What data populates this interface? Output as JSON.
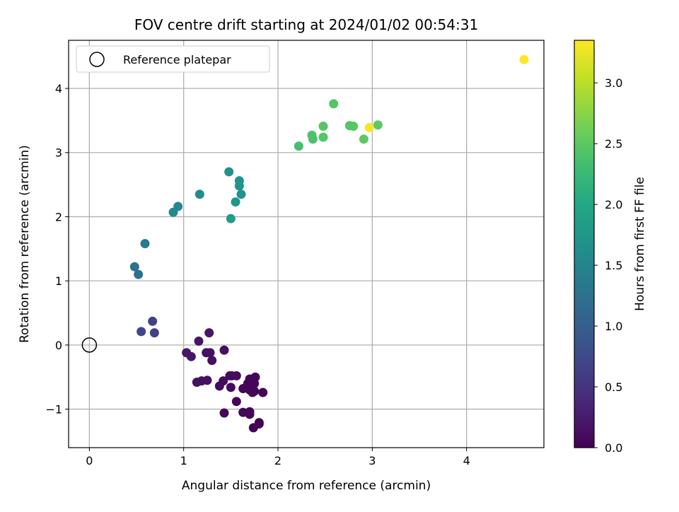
{
  "chart_data": {
    "type": "scatter",
    "title": "FOV centre drift starting at 2024/01/02 00:54:31",
    "xlabel": "Angular distance from reference (arcmin)",
    "ylabel": "Rotation from reference (arcmin)",
    "xlim": [
      -0.22,
      4.82
    ],
    "ylim": [
      -1.6,
      4.75
    ],
    "xticks": [
      0,
      1,
      2,
      3,
      4
    ],
    "yticks": [
      -1,
      0,
      1,
      2,
      3,
      4
    ],
    "xtick_labels": [
      "0",
      "1",
      "2",
      "3",
      "4"
    ],
    "ytick_labels": [
      "−1",
      "0",
      "1",
      "2",
      "3",
      "4"
    ],
    "grid": true,
    "legend": {
      "position": "top-left",
      "entries": [
        "Reference platepar"
      ]
    },
    "reference_point": {
      "x": 0,
      "y": 0
    },
    "colorbar": {
      "label": "Hours from first FF file",
      "range": [
        0,
        3.35
      ],
      "ticks": [
        0.0,
        0.5,
        1.0,
        1.5,
        2.0,
        2.5,
        3.0
      ],
      "tick_labels": [
        "0.0",
        "0.5",
        "1.0",
        "1.5",
        "2.0",
        "2.5",
        "3.0"
      ],
      "colormap": "viridis"
    },
    "points": [
      {
        "x": 1.27,
        "y": 0.19,
        "c": 0.2
      },
      {
        "x": 1.16,
        "y": 0.06,
        "c": 0.2
      },
      {
        "x": 1.43,
        "y": -0.08,
        "c": 0.15
      },
      {
        "x": 1.03,
        "y": -0.12,
        "c": 0.2
      },
      {
        "x": 1.08,
        "y": -0.18,
        "c": 0.2
      },
      {
        "x": 1.24,
        "y": -0.12,
        "c": 0.15
      },
      {
        "x": 1.28,
        "y": -0.12,
        "c": 0.15
      },
      {
        "x": 1.3,
        "y": -0.24,
        "c": 0.15
      },
      {
        "x": 1.14,
        "y": -0.58,
        "c": 0.15
      },
      {
        "x": 1.19,
        "y": -0.56,
        "c": 0.15
      },
      {
        "x": 1.25,
        "y": -0.55,
        "c": 0.15
      },
      {
        "x": 1.38,
        "y": -0.64,
        "c": 0.1
      },
      {
        "x": 1.42,
        "y": -0.56,
        "c": 0.1
      },
      {
        "x": 1.49,
        "y": -0.48,
        "c": 0.1
      },
      {
        "x": 1.51,
        "y": -0.48,
        "c": 0.1
      },
      {
        "x": 1.56,
        "y": -0.48,
        "c": 0.1
      },
      {
        "x": 1.5,
        "y": -0.66,
        "c": 0.1
      },
      {
        "x": 1.63,
        "y": -0.68,
        "c": 0.05
      },
      {
        "x": 1.68,
        "y": -0.6,
        "c": 0.05
      },
      {
        "x": 1.7,
        "y": -0.53,
        "c": 0.05
      },
      {
        "x": 1.72,
        "y": -0.58,
        "c": 0.05
      },
      {
        "x": 1.76,
        "y": -0.5,
        "c": 0.05
      },
      {
        "x": 1.75,
        "y": -0.6,
        "c": 0.05
      },
      {
        "x": 1.7,
        "y": -0.7,
        "c": 0.05
      },
      {
        "x": 1.73,
        "y": -0.74,
        "c": 0.05
      },
      {
        "x": 1.75,
        "y": -0.72,
        "c": 0.05
      },
      {
        "x": 1.84,
        "y": -0.74,
        "c": 0.05
      },
      {
        "x": 1.56,
        "y": -0.88,
        "c": 0.05
      },
      {
        "x": 1.43,
        "y": -1.06,
        "c": 0.05
      },
      {
        "x": 1.63,
        "y": -1.05,
        "c": 0.05
      },
      {
        "x": 1.7,
        "y": -1.04,
        "c": 0.05
      },
      {
        "x": 1.7,
        "y": -1.08,
        "c": 0.05
      },
      {
        "x": 1.8,
        "y": -1.21,
        "c": 0.02
      },
      {
        "x": 1.8,
        "y": -1.23,
        "c": 0.02
      },
      {
        "x": 1.74,
        "y": -1.29,
        "c": 0.02
      },
      {
        "x": 0.55,
        "y": 0.21,
        "c": 0.7
      },
      {
        "x": 0.67,
        "y": 0.37,
        "c": 0.65
      },
      {
        "x": 0.69,
        "y": 0.19,
        "c": 0.65
      },
      {
        "x": 0.48,
        "y": 1.22,
        "c": 1.25
      },
      {
        "x": 0.52,
        "y": 1.1,
        "c": 1.25
      },
      {
        "x": 0.59,
        "y": 1.58,
        "c": 1.35
      },
      {
        "x": 0.89,
        "y": 2.07,
        "c": 1.55
      },
      {
        "x": 0.94,
        "y": 2.16,
        "c": 1.55
      },
      {
        "x": 1.17,
        "y": 2.35,
        "c": 1.6
      },
      {
        "x": 1.48,
        "y": 2.7,
        "c": 1.7
      },
      {
        "x": 1.59,
        "y": 2.56,
        "c": 1.7
      },
      {
        "x": 1.59,
        "y": 2.48,
        "c": 1.7
      },
      {
        "x": 1.61,
        "y": 2.35,
        "c": 1.7
      },
      {
        "x": 1.55,
        "y": 2.23,
        "c": 1.75
      },
      {
        "x": 1.5,
        "y": 1.97,
        "c": 1.8
      },
      {
        "x": 2.22,
        "y": 3.1,
        "c": 2.35
      },
      {
        "x": 2.36,
        "y": 3.27,
        "c": 2.4
      },
      {
        "x": 2.37,
        "y": 3.21,
        "c": 2.4
      },
      {
        "x": 2.48,
        "y": 3.41,
        "c": 2.45
      },
      {
        "x": 2.48,
        "y": 3.24,
        "c": 2.45
      },
      {
        "x": 2.59,
        "y": 3.76,
        "c": 2.45
      },
      {
        "x": 2.76,
        "y": 3.42,
        "c": 2.45
      },
      {
        "x": 2.8,
        "y": 3.41,
        "c": 2.45
      },
      {
        "x": 2.91,
        "y": 3.21,
        "c": 2.5
      },
      {
        "x": 3.06,
        "y": 3.43,
        "c": 2.5
      },
      {
        "x": 2.97,
        "y": 3.39,
        "c": 3.3
      },
      {
        "x": 4.61,
        "y": 4.45,
        "c": 3.35
      }
    ]
  }
}
